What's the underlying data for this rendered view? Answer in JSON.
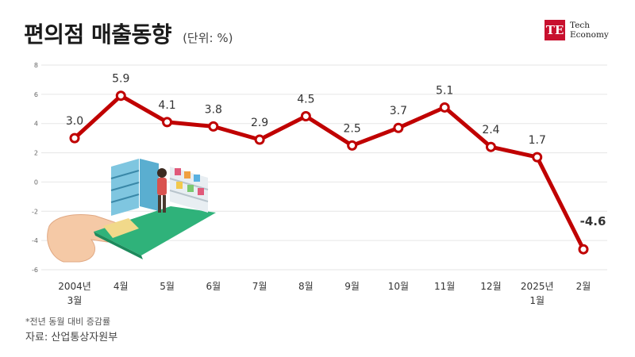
{
  "header": {
    "title": "편의점 매출동향",
    "unit": "(단위: %)",
    "logo_mark": "TE",
    "logo_line1": "Tech",
    "logo_line2": "Economy"
  },
  "chart_data": {
    "type": "line",
    "title": "편의점 매출동향",
    "unit_label": "(단위: %)",
    "categories": [
      [
        "2004년",
        "3월"
      ],
      [
        "4월"
      ],
      [
        "5월"
      ],
      [
        "6월"
      ],
      [
        "7월"
      ],
      [
        "8월"
      ],
      [
        "9월"
      ],
      [
        "10월"
      ],
      [
        "11월"
      ],
      [
        "12월"
      ],
      [
        "2025년",
        "1월"
      ],
      [
        "2월"
      ]
    ],
    "series": [
      {
        "values": [
          3.0,
          5.9,
          4.1,
          3.8,
          2.9,
          4.5,
          2.5,
          3.7,
          5.1,
          2.4,
          1.7,
          -4.6
        ],
        "color": "#c00000"
      }
    ],
    "data_labels": [
      "3.0",
      "5.9",
      "4.1",
      "3.8",
      "2.9",
      "4.5",
      "2.5",
      "3.7",
      "5.1",
      "2.4",
      "1.7",
      "-4.6"
    ],
    "ylim": [
      -6,
      8
    ],
    "yticks": [
      -6,
      -4,
      -2,
      0,
      2,
      4,
      6,
      8
    ],
    "ytick_labels": [
      "-6",
      "-4",
      "-2",
      "0",
      "2",
      "4",
      "6",
      "8"
    ],
    "grid": true,
    "colors": {
      "line": "#c00000",
      "marker_fill": "#ffffff",
      "grid": "#e6e6e6",
      "brand": "#c8102e"
    }
  },
  "footer": {
    "note": "*전년 동월 대비 증감률",
    "source": "자료: 산업통상자원부"
  }
}
